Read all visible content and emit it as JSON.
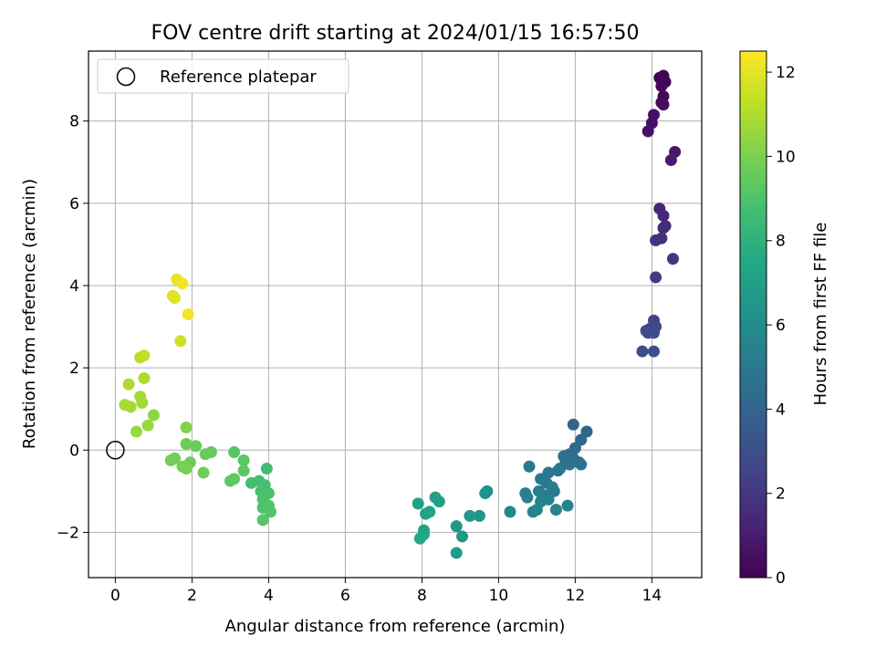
{
  "chart_data": {
    "type": "scatter",
    "title": "FOV centre drift starting at 2024/01/15 16:57:50",
    "xlabel": "Angular distance from reference (arcmin)",
    "ylabel": "Rotation from reference (arcmin)",
    "xlim": [
      -0.7,
      15.3
    ],
    "ylim": [
      -3.1,
      9.7
    ],
    "xticks": [
      0,
      2,
      4,
      6,
      8,
      10,
      12,
      14
    ],
    "yticks": [
      -2,
      0,
      2,
      4,
      6,
      8
    ],
    "grid": true,
    "legend": {
      "placement": "upper-left",
      "entries": [
        "Reference platepar"
      ]
    },
    "reference_point": {
      "x": 0,
      "y": 0,
      "marker": "open-circle"
    },
    "colorbar": {
      "label": "Hours from first FF file",
      "colormap": "viridis",
      "range": [
        0,
        12.5
      ],
      "ticks": [
        0,
        2,
        4,
        6,
        8,
        10,
        12
      ]
    },
    "colormap_stops": [
      "#440154",
      "#482475",
      "#414487",
      "#355f8d",
      "#2a788e",
      "#21918c",
      "#22a884",
      "#44bf70",
      "#7ad151",
      "#bddf26",
      "#fde725"
    ],
    "colors": {
      "grid": "#b0b0b0",
      "axis": "#000000"
    },
    "points": [
      {
        "x": 14.2,
        "y": 9.05,
        "c": 0.05
      },
      {
        "x": 14.3,
        "y": 9.1,
        "c": 0.1
      },
      {
        "x": 14.35,
        "y": 8.95,
        "c": 0.15
      },
      {
        "x": 14.25,
        "y": 8.85,
        "c": 0.2
      },
      {
        "x": 14.3,
        "y": 8.6,
        "c": 0.3
      },
      {
        "x": 14.25,
        "y": 8.45,
        "c": 0.35
      },
      {
        "x": 14.3,
        "y": 8.4,
        "c": 0.4
      },
      {
        "x": 14.05,
        "y": 8.15,
        "c": 0.5
      },
      {
        "x": 14.0,
        "y": 7.95,
        "c": 0.55
      },
      {
        "x": 13.9,
        "y": 7.75,
        "c": 0.6
      },
      {
        "x": 14.6,
        "y": 7.25,
        "c": 0.8
      },
      {
        "x": 14.5,
        "y": 7.05,
        "c": 0.9
      },
      {
        "x": 14.2,
        "y": 5.87,
        "c": 1.3
      },
      {
        "x": 14.3,
        "y": 5.7,
        "c": 1.4
      },
      {
        "x": 14.35,
        "y": 5.45,
        "c": 1.5
      },
      {
        "x": 14.3,
        "y": 5.4,
        "c": 1.6
      },
      {
        "x": 14.25,
        "y": 5.15,
        "c": 1.7
      },
      {
        "x": 14.1,
        "y": 5.1,
        "c": 1.8
      },
      {
        "x": 14.55,
        "y": 4.65,
        "c": 1.9
      },
      {
        "x": 14.1,
        "y": 4.2,
        "c": 2.1
      },
      {
        "x": 14.05,
        "y": 3.15,
        "c": 2.6
      },
      {
        "x": 14.1,
        "y": 3.0,
        "c": 2.7
      },
      {
        "x": 13.95,
        "y": 2.95,
        "c": 2.75
      },
      {
        "x": 13.85,
        "y": 2.9,
        "c": 2.8
      },
      {
        "x": 14.05,
        "y": 2.85,
        "c": 2.85
      },
      {
        "x": 13.9,
        "y": 2.85,
        "c": 2.9
      },
      {
        "x": 13.75,
        "y": 2.4,
        "c": 3.0
      },
      {
        "x": 14.05,
        "y": 2.4,
        "c": 3.1
      },
      {
        "x": 11.95,
        "y": 0.62,
        "c": 4.0
      },
      {
        "x": 12.3,
        "y": 0.45,
        "c": 4.1
      },
      {
        "x": 12.15,
        "y": 0.25,
        "c": 4.2
      },
      {
        "x": 12.0,
        "y": 0.05,
        "c": 4.3
      },
      {
        "x": 11.85,
        "y": -0.1,
        "c": 4.4
      },
      {
        "x": 11.7,
        "y": -0.15,
        "c": 4.5
      },
      {
        "x": 11.95,
        "y": -0.2,
        "c": 4.55
      },
      {
        "x": 12.1,
        "y": -0.3,
        "c": 4.6
      },
      {
        "x": 12.15,
        "y": -0.35,
        "c": 4.65
      },
      {
        "x": 11.75,
        "y": -0.3,
        "c": 4.7
      },
      {
        "x": 11.85,
        "y": -0.35,
        "c": 4.75
      },
      {
        "x": 11.6,
        "y": -0.45,
        "c": 4.8
      },
      {
        "x": 11.55,
        "y": -0.5,
        "c": 4.85
      },
      {
        "x": 11.3,
        "y": -0.55,
        "c": 4.9
      },
      {
        "x": 11.1,
        "y": -0.7,
        "c": 5.0
      },
      {
        "x": 11.25,
        "y": -0.8,
        "c": 5.05
      },
      {
        "x": 10.8,
        "y": -0.4,
        "c": 5.1
      },
      {
        "x": 11.4,
        "y": -0.9,
        "c": 5.15
      },
      {
        "x": 11.45,
        "y": -1.0,
        "c": 5.2
      },
      {
        "x": 11.05,
        "y": -1.0,
        "c": 5.25
      },
      {
        "x": 10.7,
        "y": -1.05,
        "c": 5.3
      },
      {
        "x": 11.2,
        "y": -1.1,
        "c": 5.35
      },
      {
        "x": 11.3,
        "y": -1.2,
        "c": 5.4
      },
      {
        "x": 10.75,
        "y": -1.15,
        "c": 5.45
      },
      {
        "x": 11.1,
        "y": -1.25,
        "c": 5.5
      },
      {
        "x": 11.8,
        "y": -1.35,
        "c": 5.55
      },
      {
        "x": 11.5,
        "y": -1.45,
        "c": 5.6
      },
      {
        "x": 10.9,
        "y": -1.5,
        "c": 5.65
      },
      {
        "x": 11.0,
        "y": -1.45,
        "c": 5.7
      },
      {
        "x": 10.3,
        "y": -1.5,
        "c": 5.75
      },
      {
        "x": 9.7,
        "y": -1.0,
        "c": 6.2
      },
      {
        "x": 9.65,
        "y": -1.05,
        "c": 6.3
      },
      {
        "x": 9.5,
        "y": -1.6,
        "c": 6.4
      },
      {
        "x": 9.25,
        "y": -1.6,
        "c": 6.5
      },
      {
        "x": 8.9,
        "y": -1.85,
        "c": 6.6
      },
      {
        "x": 9.05,
        "y": -2.1,
        "c": 6.7
      },
      {
        "x": 8.9,
        "y": -2.5,
        "c": 6.8
      },
      {
        "x": 8.35,
        "y": -1.15,
        "c": 7.0
      },
      {
        "x": 8.45,
        "y": -1.25,
        "c": 7.05
      },
      {
        "x": 7.9,
        "y": -1.3,
        "c": 7.1
      },
      {
        "x": 8.2,
        "y": -1.5,
        "c": 7.15
      },
      {
        "x": 8.1,
        "y": -1.55,
        "c": 7.2
      },
      {
        "x": 8.05,
        "y": -1.95,
        "c": 7.3
      },
      {
        "x": 8.05,
        "y": -2.05,
        "c": 7.4
      },
      {
        "x": 7.95,
        "y": -2.15,
        "c": 7.45
      },
      {
        "x": 3.95,
        "y": -0.45,
        "c": 8.6
      },
      {
        "x": 3.75,
        "y": -0.75,
        "c": 8.7
      },
      {
        "x": 3.55,
        "y": -0.8,
        "c": 8.75
      },
      {
        "x": 3.9,
        "y": -0.85,
        "c": 8.8
      },
      {
        "x": 3.8,
        "y": -1.0,
        "c": 8.85
      },
      {
        "x": 4.0,
        "y": -1.05,
        "c": 8.9
      },
      {
        "x": 3.85,
        "y": -1.2,
        "c": 8.95
      },
      {
        "x": 3.85,
        "y": -1.4,
        "c": 9.0
      },
      {
        "x": 4.0,
        "y": -1.35,
        "c": 9.05
      },
      {
        "x": 4.05,
        "y": -1.5,
        "c": 9.1
      },
      {
        "x": 3.85,
        "y": -1.7,
        "c": 9.15
      },
      {
        "x": 3.1,
        "y": -0.05,
        "c": 9.2
      },
      {
        "x": 3.35,
        "y": -0.25,
        "c": 9.25
      },
      {
        "x": 3.35,
        "y": -0.5,
        "c": 9.3
      },
      {
        "x": 3.1,
        "y": -0.7,
        "c": 9.35
      },
      {
        "x": 3.0,
        "y": -0.75,
        "c": 9.4
      },
      {
        "x": 2.5,
        "y": -0.05,
        "c": 9.5
      },
      {
        "x": 2.35,
        "y": -0.1,
        "c": 9.55
      },
      {
        "x": 2.1,
        "y": 0.1,
        "c": 9.6
      },
      {
        "x": 1.85,
        "y": 0.15,
        "c": 9.65
      },
      {
        "x": 2.3,
        "y": -0.55,
        "c": 9.7
      },
      {
        "x": 1.95,
        "y": -0.3,
        "c": 9.75
      },
      {
        "x": 1.55,
        "y": -0.2,
        "c": 9.8
      },
      {
        "x": 1.45,
        "y": -0.25,
        "c": 9.85
      },
      {
        "x": 1.75,
        "y": -0.4,
        "c": 9.9
      },
      {
        "x": 1.85,
        "y": -0.45,
        "c": 9.95
      },
      {
        "x": 1.85,
        "y": 0.55,
        "c": 10.1
      },
      {
        "x": 1.0,
        "y": 0.85,
        "c": 10.4
      },
      {
        "x": 0.85,
        "y": 0.6,
        "c": 10.5
      },
      {
        "x": 0.55,
        "y": 0.45,
        "c": 10.6
      },
      {
        "x": 0.7,
        "y": 1.15,
        "c": 10.7
      },
      {
        "x": 0.65,
        "y": 1.3,
        "c": 10.75
      },
      {
        "x": 0.4,
        "y": 1.05,
        "c": 10.8
      },
      {
        "x": 0.25,
        "y": 1.1,
        "c": 10.85
      },
      {
        "x": 0.35,
        "y": 1.6,
        "c": 10.9
      },
      {
        "x": 0.75,
        "y": 1.75,
        "c": 10.95
      },
      {
        "x": 0.65,
        "y": 2.25,
        "c": 11.2
      },
      {
        "x": 0.75,
        "y": 2.3,
        "c": 11.3
      },
      {
        "x": 1.7,
        "y": 2.65,
        "c": 11.6
      },
      {
        "x": 1.5,
        "y": 3.75,
        "c": 11.9
      },
      {
        "x": 1.55,
        "y": 3.7,
        "c": 11.95
      },
      {
        "x": 1.6,
        "y": 4.15,
        "c": 12.1
      },
      {
        "x": 1.75,
        "y": 4.05,
        "c": 12.2
      },
      {
        "x": 1.9,
        "y": 3.3,
        "c": 12.3
      }
    ]
  }
}
